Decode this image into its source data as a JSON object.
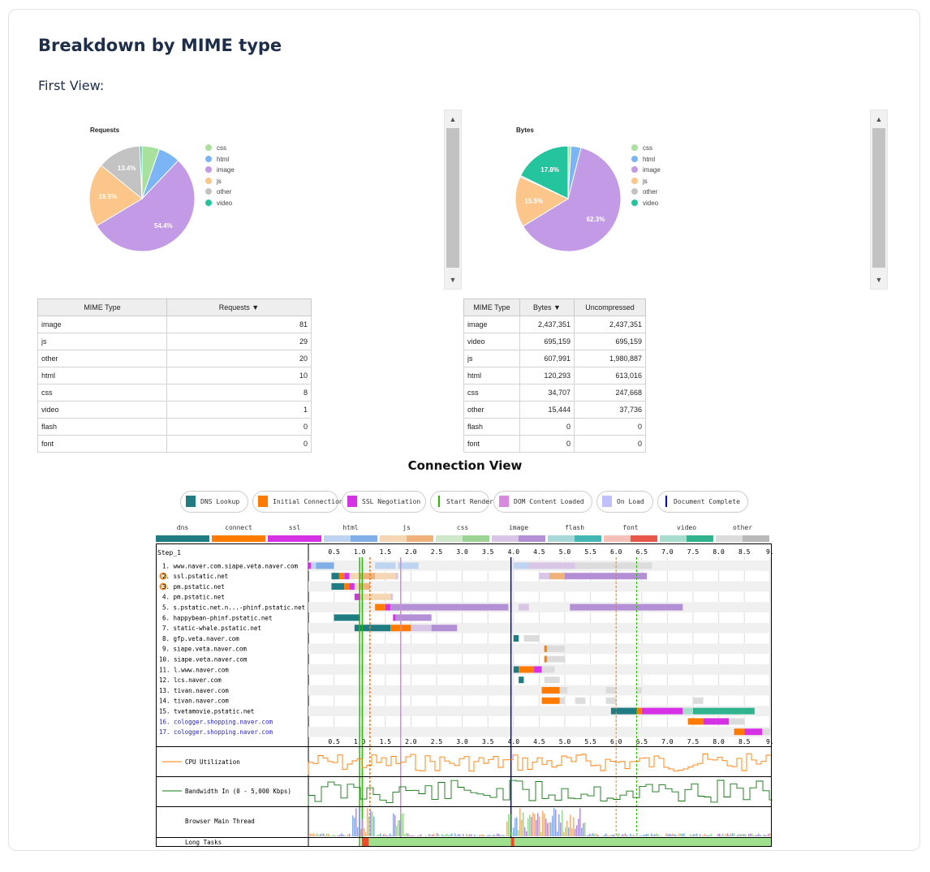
{
  "heading": "Breakdown by MIME type",
  "view_label": "First View:",
  "chart_data": [
    {
      "type": "pie",
      "title": "Requests",
      "categories": [
        "css",
        "html",
        "image",
        "js",
        "other",
        "video"
      ],
      "values": [
        8,
        10,
        81,
        29,
        20,
        1
      ],
      "slice_labels": [
        "",
        "",
        "54.4%",
        "19.5%",
        "13.4%",
        ""
      ],
      "colors": [
        "#a8e09e",
        "#7cb5f5",
        "#c39ae6",
        "#fcc58a",
        "#c3c3c3",
        "#23c49e"
      ]
    },
    {
      "type": "pie",
      "title": "Bytes",
      "categories": [
        "css",
        "html",
        "image",
        "js",
        "other",
        "video"
      ],
      "values": [
        34707,
        120293,
        2437351,
        607991,
        15444,
        695159
      ],
      "slice_labels": [
        "",
        "",
        "62.3%",
        "15.5%",
        "",
        "17.8%"
      ],
      "colors": [
        "#a8e09e",
        "#7cb5f5",
        "#c39ae6",
        "#fcc58a",
        "#c3c3c3",
        "#23c49e"
      ]
    }
  ],
  "requests_table": {
    "headers": [
      "MIME Type",
      "Requests ▼"
    ],
    "rows": [
      [
        "image",
        "81"
      ],
      [
        "js",
        "29"
      ],
      [
        "other",
        "20"
      ],
      [
        "html",
        "10"
      ],
      [
        "css",
        "8"
      ],
      [
        "video",
        "1"
      ],
      [
        "flash",
        "0"
      ],
      [
        "font",
        "0"
      ]
    ]
  },
  "bytes_table": {
    "headers": [
      "MIME Type",
      "Bytes ▼",
      "Uncompressed"
    ],
    "rows": [
      [
        "image",
        "2,437,351",
        "2,437,351"
      ],
      [
        "video",
        "695,159",
        "695,159"
      ],
      [
        "js",
        "607,991",
        "1,980,887"
      ],
      [
        "html",
        "120,293",
        "613,016"
      ],
      [
        "css",
        "34,707",
        "247,668"
      ],
      [
        "other",
        "15,444",
        "37,736"
      ],
      [
        "flash",
        "0",
        "0"
      ],
      [
        "font",
        "0",
        "0"
      ]
    ]
  },
  "connection_view": {
    "title": "Connection View",
    "legend": [
      {
        "label": "DNS Lookup",
        "color": "#1f7c83",
        "kind": "box"
      },
      {
        "label": "Initial Connection",
        "color": "#ff7b00",
        "kind": "box"
      },
      {
        "label": "SSL Negotiation",
        "color": "#d632e5",
        "kind": "box"
      },
      {
        "label": "Start Render",
        "color": "#28bc00",
        "kind": "line"
      },
      {
        "label": "DOM Content Loaded",
        "color": "#d888df",
        "kind": "box"
      },
      {
        "label": "On Load",
        "color": "#c0c0ff",
        "kind": "box"
      },
      {
        "label": "Document Complete",
        "color": "#0000d6",
        "kind": "line"
      }
    ],
    "type_legend": [
      {
        "label": "dns",
        "c1": "#1f7c83",
        "c2": "#1f7c83"
      },
      {
        "label": "connect",
        "c1": "#ff7b00",
        "c2": "#ff7b00"
      },
      {
        "label": "ssl",
        "c1": "#d632e5",
        "c2": "#d632e5"
      },
      {
        "label": "html",
        "c1": "#bfd4f0",
        "c2": "#82aee8"
      },
      {
        "label": "js",
        "c1": "#f5d7b5",
        "c2": "#f0b27a"
      },
      {
        "label": "css",
        "c1": "#cfe8cc",
        "c2": "#9bd494"
      },
      {
        "label": "image",
        "c1": "#d9c5e6",
        "c2": "#b38fd6"
      },
      {
        "label": "flash",
        "c1": "#a9d8d8",
        "c2": "#45b6b6"
      },
      {
        "label": "font",
        "c1": "#f5c0b5",
        "c2": "#e8584a"
      },
      {
        "label": "video",
        "c1": "#a8dccc",
        "c2": "#32b38f"
      },
      {
        "label": "other",
        "c1": "#dcdcdc",
        "c2": "#b9b9b9"
      }
    ],
    "step_label": "Step_1",
    "ticks": [
      "0.5",
      "1.0",
      "1.5",
      "2.0",
      "2.5",
      "3.0",
      "3.5",
      "4.0",
      "4.5",
      "5.0",
      "5.5",
      "6.0",
      "6.5",
      "7.0",
      "7.5",
      "8.0",
      "8.5",
      "9."
    ],
    "rows": [
      {
        "label": "1. www.naver.com.siape.veta.naver.com",
        "warn": false,
        "link": false
      },
      {
        "label": "2. ssl.pstatic.net",
        "warn": true,
        "link": false
      },
      {
        "label": "3. pm.pstatic.net",
        "warn": true,
        "link": false
      },
      {
        "label": "4. pm.pstatic.net",
        "warn": false,
        "link": false
      },
      {
        "label": "5. s.pstatic.net.n...-phinf.pstatic.net",
        "warn": false,
        "link": false
      },
      {
        "label": "6. happybean-phinf.pstatic.net",
        "warn": false,
        "link": false
      },
      {
        "label": "7. static-whale.pstatic.net",
        "warn": false,
        "link": false
      },
      {
        "label": "8. gfp.veta.naver.com",
        "warn": false,
        "link": false
      },
      {
        "label": "9. siape.veta.naver.com",
        "warn": false,
        "link": false
      },
      {
        "label": "10. siape.veta.naver.com",
        "warn": false,
        "link": false
      },
      {
        "label": "11. l.www.naver.com",
        "warn": false,
        "link": false
      },
      {
        "label": "12. lcs.naver.com",
        "warn": false,
        "link": false
      },
      {
        "label": "13. tivan.naver.com",
        "warn": false,
        "link": false
      },
      {
        "label": "14. tivan.naver.com",
        "warn": false,
        "link": false
      },
      {
        "label": "15. tvetamovie.pstatic.net",
        "warn": false,
        "link": false
      },
      {
        "label": "16. cologger.shopping.naver.com",
        "warn": false,
        "link": true
      },
      {
        "label": "17. cologger.shopping.naver.com",
        "warn": false,
        "link": true
      }
    ],
    "cpu_label": "CPU Utilization",
    "bandwidth_label": "Bandwidth In (0 - 5,000 Kbps)",
    "main_thread_label": "Browser Main Thread",
    "long_tasks_label": "Long Tasks"
  }
}
